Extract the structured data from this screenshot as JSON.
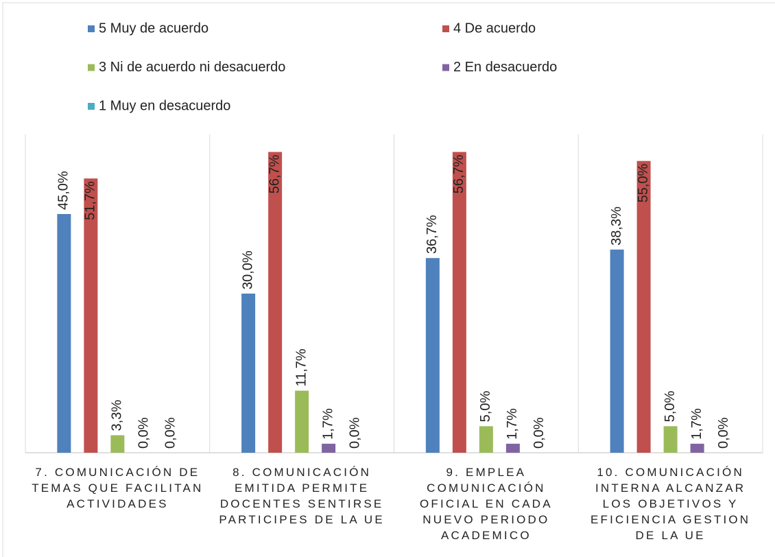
{
  "chart_data": {
    "type": "bar",
    "categories": [
      "7. COMUNICACIÓN DE TEMAS QUE FACILITAN ACTIVIDADES",
      "8. COMUNICACIÓN EMITIDA PERMITE DOCENTES SENTIRSE PARTICIPES DE LA UE",
      "9. EMPLEA COMUNICACIÓN OFICIAL EN CADA NUEVO PERIODO ACADEMICO",
      "10. COMUNICACIÓN INTERNA ALCANZAR LOS OBJETIVOS Y EFICIENCIA GESTION DE LA UE"
    ],
    "series": [
      {
        "name": "5 Muy de acuerdo",
        "color": "#4f81bd",
        "values": [
          45.0,
          30.0,
          36.7,
          38.3
        ],
        "value_labels": [
          "45,0%",
          "30,0%",
          "36,7%",
          "38,3%"
        ]
      },
      {
        "name": "4 De acuerdo",
        "color": "#c0504d",
        "values": [
          51.7,
          56.7,
          56.7,
          55.0
        ],
        "value_labels": [
          "51,7%",
          "56,7%",
          "56,7%",
          "55,0%"
        ]
      },
      {
        "name": "3 Ni de acuerdo ni desacuerdo",
        "color": "#9bbb59",
        "values": [
          3.3,
          11.7,
          5.0,
          5.0
        ],
        "value_labels": [
          "3,3%",
          "11,7%",
          "5,0%",
          "5,0%"
        ]
      },
      {
        "name": "2 En desacuerdo",
        "color": "#8064a2",
        "values": [
          0.0,
          1.7,
          1.7,
          1.7
        ],
        "value_labels": [
          "0,0%",
          "1,7%",
          "1,7%",
          "1,7%"
        ]
      },
      {
        "name": "1 Muy en desacuerdo",
        "color": "#4bacc6",
        "values": [
          0.0,
          0.0,
          0.0,
          0.0
        ],
        "value_labels": [
          "0,0%",
          "0,0%",
          "0,0%",
          "0,0%"
        ]
      }
    ],
    "ylim": [
      0,
      60
    ],
    "legend": "top"
  }
}
